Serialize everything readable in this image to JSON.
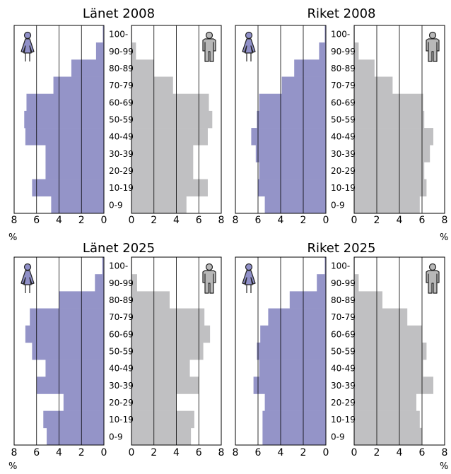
{
  "colors": {
    "women": "#9494c8",
    "men": "#c0c0c2",
    "women_icon": "#9090c8",
    "men_icon": "#b8b8b8",
    "grid": "#000000"
  },
  "icons": {
    "women": "woman-icon",
    "men": "man-icon"
  },
  "chart_data": [
    {
      "type": "bar",
      "title": "Länet 2008",
      "orientation": "horizontal",
      "categories": [
        "0-9",
        "10-19",
        "20-29",
        "30-39",
        "40-49",
        "50-59",
        "60-69",
        "70-79",
        "80-89",
        "90-99",
        "100-"
      ],
      "series": [
        {
          "values": [
            4.7,
            6.4,
            5.2,
            5.2,
            7.0,
            7.1,
            6.9,
            4.5,
            2.9,
            0.7,
            0.1
          ]
        },
        {
          "values": [
            4.9,
            6.8,
            5.5,
            5.5,
            6.8,
            7.2,
            6.9,
            3.7,
            2.0,
            0.4,
            0.05
          ]
        }
      ],
      "xlabel": "%",
      "xlim": [
        0,
        8
      ],
      "ticks": [
        "0",
        "2",
        "4",
        "6",
        "8"
      ],
      "grid": true
    },
    {
      "type": "bar",
      "title": "Riket 2008",
      "orientation": "horizontal",
      "categories": [
        "0-9",
        "10-19",
        "20-29",
        "30-39",
        "40-49",
        "50-59",
        "60-69",
        "70-79",
        "80-89",
        "90-99",
        "100-"
      ],
      "series": [
        {
          "values": [
            5.4,
            6.0,
            5.9,
            6.2,
            6.6,
            6.1,
            5.9,
            3.9,
            2.8,
            0.6,
            0.1
          ]
        },
        {
          "values": [
            5.8,
            6.4,
            6.2,
            6.7,
            7.0,
            6.2,
            6.1,
            3.4,
            1.8,
            0.4,
            0.05
          ]
        }
      ],
      "xlabel": "%",
      "xlim": [
        0,
        8
      ],
      "ticks": [
        "0",
        "2",
        "4",
        "6",
        "8"
      ],
      "grid": true
    },
    {
      "type": "bar",
      "title": "Länet 2025",
      "orientation": "horizontal",
      "categories": [
        "0-9",
        "10-19",
        "20-29",
        "30-39",
        "40-49",
        "50-59",
        "60-69",
        "70-79",
        "80-89",
        "90-99",
        "100-"
      ],
      "series": [
        {
          "values": [
            5.1,
            5.4,
            3.6,
            6.0,
            5.2,
            6.4,
            7.0,
            6.6,
            4.0,
            0.8,
            0.15
          ]
        },
        {
          "values": [
            5.3,
            5.6,
            4.0,
            6.0,
            5.2,
            6.4,
            7.0,
            6.5,
            3.4,
            0.5,
            0.05
          ]
        }
      ],
      "xlabel": "%",
      "xlim": [
        0,
        8
      ],
      "ticks": [
        "0",
        "2",
        "4",
        "6",
        "8"
      ],
      "grid": true
    },
    {
      "type": "bar",
      "title": "Riket 2025",
      "orientation": "horizontal",
      "categories": [
        "0-9",
        "10-19",
        "20-29",
        "30-39",
        "40-49",
        "50-59",
        "60-69",
        "70-79",
        "80-89",
        "90-99",
        "100-"
      ],
      "series": [
        {
          "values": [
            5.6,
            5.6,
            5.4,
            6.4,
            5.9,
            6.1,
            5.8,
            5.1,
            3.2,
            0.8,
            0.1
          ]
        },
        {
          "values": [
            6.0,
            5.8,
            5.5,
            7.0,
            6.1,
            6.4,
            6.0,
            4.7,
            2.5,
            0.4,
            0.05
          ]
        }
      ],
      "xlabel": "%",
      "xlim": [
        0,
        8
      ],
      "ticks": [
        "0",
        "2",
        "4",
        "6",
        "8"
      ],
      "grid": true
    }
  ]
}
